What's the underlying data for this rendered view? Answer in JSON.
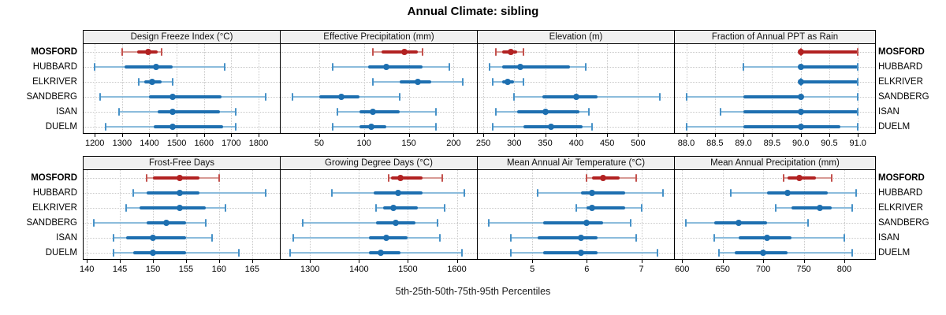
{
  "title": "Annual Climate: sibling",
  "caption": "5th-25th-50th-75th-95th Percentiles",
  "stations": [
    {
      "name": "MOSFORD",
      "highlight": true
    },
    {
      "name": "HUBBARD",
      "highlight": false
    },
    {
      "name": "ELKRIVER",
      "highlight": false
    },
    {
      "name": "SANDBERG",
      "highlight": false
    },
    {
      "name": "ISAN",
      "highlight": false
    },
    {
      "name": "DUELM",
      "highlight": false
    }
  ],
  "colors": {
    "highlight_main": "#b22222",
    "highlight_light": "#d79a95",
    "highlight_cap": "#c4524e",
    "normal_main": "#1d6fb0",
    "normal_light": "#8cbcdc",
    "normal_cap": "#4792c8",
    "grid": "#c9c9c9",
    "panel_border": "#000000",
    "panel_header_bg": "#f0f0f0"
  },
  "chart_data": {
    "type": "dot-whisker-percentile-trellis",
    "rows": 2,
    "cols": 4,
    "grid": "dotted",
    "percentile_labels": [
      "5th",
      "25th",
      "50th",
      "75th",
      "95th"
    ],
    "station_order": [
      "MOSFORD",
      "HUBBARD",
      "ELKRIVER",
      "SANDBERG",
      "ISAN",
      "DUELM"
    ],
    "panels": [
      {
        "title": "Design Freeze Index (°C)",
        "xlim": [
          1159,
          1878
        ],
        "tick_values": [
          1200,
          1300,
          1400,
          1500,
          1600,
          1700,
          1800
        ],
        "tick_labels": [
          "1200",
          "1300",
          "1400",
          "1500",
          "1600",
          "1700",
          "1800"
        ],
        "values": [
          [
            1300,
            1355,
            1395,
            1430,
            1445
          ],
          [
            1200,
            1310,
            1425,
            1485,
            1675
          ],
          [
            1360,
            1380,
            1410,
            1445,
            1485
          ],
          [
            1220,
            1400,
            1485,
            1665,
            1825
          ],
          [
            1290,
            1430,
            1485,
            1660,
            1715
          ],
          [
            1240,
            1415,
            1485,
            1670,
            1715
          ]
        ]
      },
      {
        "title": "Effective Precipitation (mm)",
        "xlim": [
          7,
          226
        ],
        "tick_values": [
          50,
          100,
          150,
          200
        ],
        "tick_labels": [
          "50",
          "100",
          "150",
          "200"
        ],
        "values": [
          [
            110,
            120,
            145,
            160,
            165
          ],
          [
            65,
            105,
            125,
            165,
            195
          ],
          [
            110,
            140,
            160,
            175,
            210
          ],
          [
            20,
            50,
            75,
            95,
            140
          ],
          [
            70,
            95,
            110,
            140,
            180
          ],
          [
            65,
            95,
            108,
            125,
            180
          ]
        ]
      },
      {
        "title": "Elevation (m)",
        "xlim": [
          241,
          558
        ],
        "tick_values": [
          250,
          300,
          350,
          400,
          450,
          500
        ],
        "tick_labels": [
          "250",
          "300",
          "350",
          "400",
          "450",
          "500"
        ],
        "values": [
          [
            270,
            280,
            295,
            305,
            315
          ],
          [
            260,
            280,
            310,
            390,
            415
          ],
          [
            265,
            280,
            290,
            300,
            315
          ],
          [
            300,
            345,
            400,
            435,
            535
          ],
          [
            270,
            305,
            350,
            405,
            420
          ],
          [
            265,
            315,
            360,
            410,
            425
          ]
        ]
      },
      {
        "title": "Fraction of Annual PPT as Rain",
        "xlim": [
          87.8,
          91.3
        ],
        "tick_values": [
          88.0,
          88.5,
          89.0,
          89.5,
          90.0,
          90.5,
          91.0
        ],
        "tick_labels": [
          "88.0",
          "88.5",
          "89.0",
          "89.5",
          "90.0",
          "90.5",
          "91.0"
        ],
        "values": [
          [
            90,
            90,
            90,
            91,
            91
          ],
          [
            89,
            90,
            90,
            91,
            91
          ],
          [
            90,
            90,
            90,
            91,
            91
          ],
          [
            88,
            89,
            90,
            90,
            91
          ],
          [
            88.6,
            89,
            90,
            91,
            91
          ],
          [
            88,
            89,
            90,
            90.7,
            91
          ]
        ]
      },
      {
        "title": "Frost-Free Days",
        "xlim": [
          139.5,
          169.2
        ],
        "tick_values": [
          140,
          145,
          150,
          155,
          160,
          165
        ],
        "tick_labels": [
          "140",
          "145",
          "150",
          "155",
          "160",
          "165"
        ],
        "values": [
          [
            149,
            150,
            154,
            157,
            160
          ],
          [
            147,
            149,
            154,
            157,
            167
          ],
          [
            146,
            148,
            154,
            158,
            161
          ],
          [
            141,
            149,
            152,
            155,
            158
          ],
          [
            144,
            146,
            150,
            155,
            159
          ],
          [
            144,
            147,
            150,
            155,
            163
          ]
        ]
      },
      {
        "title": "Growing Degree Days (°C)",
        "xlim": [
          1240,
          1641
        ],
        "tick_values": [
          1300,
          1400,
          1500,
          1600
        ],
        "tick_labels": [
          "1300",
          "1400",
          "1500",
          "1600"
        ],
        "values": [
          [
            1460,
            1465,
            1485,
            1530,
            1570
          ],
          [
            1345,
            1430,
            1480,
            1530,
            1615
          ],
          [
            1435,
            1450,
            1470,
            1520,
            1575
          ],
          [
            1285,
            1435,
            1475,
            1515,
            1560
          ],
          [
            1265,
            1420,
            1455,
            1500,
            1565
          ],
          [
            1260,
            1420,
            1445,
            1485,
            1610
          ]
        ]
      },
      {
        "title": "Mean Annual Air Temperature (°C)",
        "xlim": [
          4.0,
          7.6
        ],
        "tick_values": [
          5,
          6,
          7
        ],
        "tick_labels": [
          "5",
          "6",
          "7"
        ],
        "values": [
          [
            6.0,
            6.1,
            6.3,
            6.6,
            6.9
          ],
          [
            5.1,
            5.9,
            6.1,
            6.7,
            7.4
          ],
          [
            5.8,
            6.0,
            6.1,
            6.7,
            7.0
          ],
          [
            4.2,
            5.2,
            6.0,
            6.3,
            6.8
          ],
          [
            4.6,
            5.1,
            5.9,
            6.2,
            6.9
          ],
          [
            4.6,
            5.2,
            5.9,
            6.2,
            7.3
          ]
        ]
      },
      {
        "title": "Mean Annual Precipitation (mm)",
        "xlim": [
          591,
          838
        ],
        "tick_values": [
          600,
          650,
          700,
          750,
          800
        ],
        "tick_labels": [
          "600",
          "650",
          "700",
          "750",
          "800"
        ],
        "values": [
          [
            725,
            730,
            745,
            765,
            785
          ],
          [
            660,
            705,
            730,
            780,
            815
          ],
          [
            715,
            735,
            770,
            785,
            810
          ],
          [
            605,
            640,
            670,
            705,
            755
          ],
          [
            640,
            670,
            705,
            735,
            800
          ],
          [
            645,
            665,
            700,
            730,
            810
          ]
        ]
      }
    ]
  }
}
